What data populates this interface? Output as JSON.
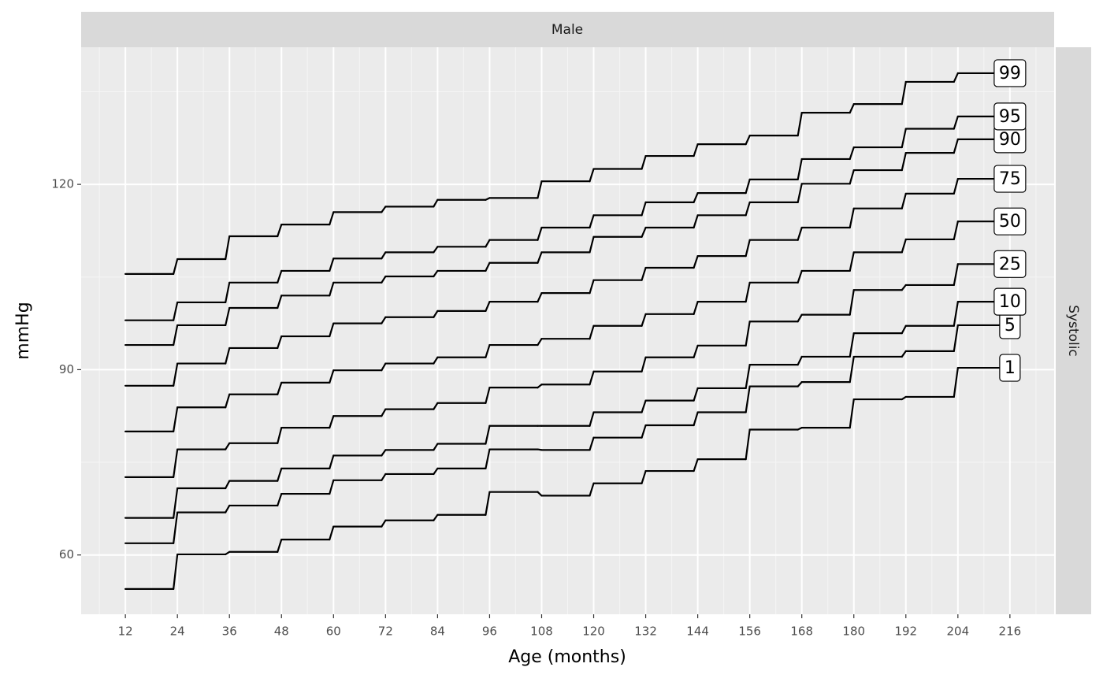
{
  "chart_data": {
    "type": "step",
    "strip_top": "Male",
    "strip_right": "Systolic",
    "x_label": "Age (months)",
    "y_label": "mmHg",
    "x": [
      12,
      24,
      36,
      48,
      60,
      72,
      84,
      96,
      108,
      120,
      132,
      144,
      156,
      168,
      180,
      192,
      204
    ],
    "xlim": [
      1.8,
      226.2
    ],
    "xticks": [
      12,
      24,
      36,
      48,
      60,
      72,
      84,
      96,
      108,
      120,
      132,
      144,
      156,
      168,
      180,
      192,
      204,
      216
    ],
    "ylim": [
      50.4,
      142.2
    ],
    "yticks": [
      60,
      90,
      120
    ],
    "grid": true,
    "series": [
      {
        "name": "1",
        "color": "#000000",
        "values": [
          54.5,
          60.1,
          60.5,
          62.5,
          64.6,
          65.6,
          66.5,
          70.2,
          69.6,
          71.6,
          73.6,
          75.5,
          80.3,
          80.6,
          85.2,
          85.6,
          90.3
        ]
      },
      {
        "name": "5",
        "color": "#000000",
        "values": [
          61.9,
          66.9,
          68.0,
          69.9,
          72.1,
          73.1,
          74.0,
          77.1,
          77.0,
          79.0,
          81.0,
          83.1,
          87.3,
          88.0,
          92.1,
          93.0,
          97.2
        ]
      },
      {
        "name": "10",
        "color": "#000000",
        "values": [
          66.0,
          70.8,
          72.0,
          74.0,
          76.1,
          77.0,
          78.0,
          80.9,
          80.9,
          83.1,
          85.0,
          87.0,
          90.8,
          92.1,
          95.9,
          97.1,
          101.0
        ]
      },
      {
        "name": "25",
        "color": "#000000",
        "values": [
          72.6,
          77.1,
          78.1,
          80.6,
          82.5,
          83.6,
          84.6,
          87.1,
          87.6,
          89.7,
          92.0,
          93.9,
          97.8,
          98.9,
          102.9,
          103.7,
          107.1
        ]
      },
      {
        "name": "50",
        "color": "#000000",
        "values": [
          80.0,
          83.9,
          86.0,
          87.9,
          89.9,
          91.0,
          92.0,
          94.0,
          95.0,
          97.1,
          99.0,
          101.0,
          104.1,
          106.0,
          109.0,
          111.1,
          114.0
        ]
      },
      {
        "name": "75",
        "color": "#000000",
        "values": [
          87.4,
          91.0,
          93.5,
          95.4,
          97.5,
          98.5,
          99.5,
          101.0,
          102.4,
          104.5,
          106.5,
          108.4,
          111.0,
          113.0,
          116.1,
          118.5,
          120.9
        ]
      },
      {
        "name": "90",
        "color": "#000000",
        "values": [
          94.0,
          97.2,
          100.0,
          102.0,
          104.1,
          105.1,
          106.0,
          107.3,
          109.0,
          111.5,
          113.0,
          115.0,
          117.1,
          120.1,
          122.3,
          125.1,
          127.3
        ]
      },
      {
        "name": "95",
        "color": "#000000",
        "values": [
          98.0,
          100.9,
          104.1,
          106.0,
          108.0,
          109.0,
          109.9,
          111.0,
          113.0,
          115.0,
          117.1,
          118.6,
          120.8,
          124.1,
          126.0,
          129.0,
          131.0
        ]
      },
      {
        "name": "99",
        "color": "#000000",
        "values": [
          105.5,
          107.9,
          111.6,
          113.5,
          115.5,
          116.4,
          117.5,
          117.8,
          120.5,
          122.5,
          124.6,
          126.5,
          127.9,
          131.6,
          133.0,
          136.6,
          138.0
        ]
      }
    ]
  }
}
